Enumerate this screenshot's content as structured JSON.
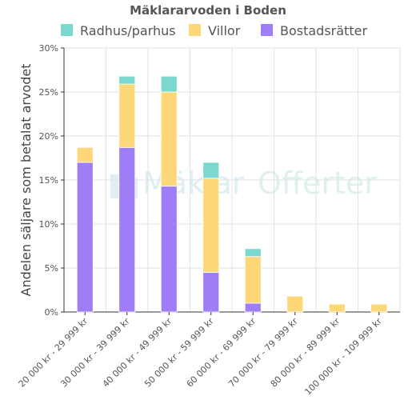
{
  "chart_data": {
    "type": "bar",
    "stacked": true,
    "title": "Mäklararvoden i Boden",
    "ylabel": "Andelen säljare som betalat arvodet",
    "xlabel": "",
    "ylim": [
      0,
      30
    ],
    "yticks": [
      "0%",
      "5%",
      "10%",
      "15%",
      "20%",
      "25%",
      "30%"
    ],
    "grid": true,
    "legend_position": "top",
    "categories": [
      "20 000 kr - 29 999 kr",
      "30 000 kr - 39 999 kr",
      "40 000 kr - 49 999 kr",
      "50 000 kr - 59 999 kr",
      "60 000 kr - 69 999 kr",
      "70 000 kr - 79 999 kr",
      "80 000 kr - 89 999 kr",
      "100 000 kr - 109 999 kr"
    ],
    "series": [
      {
        "name": "Bostadsrätter",
        "color": "#9f7df7",
        "values": [
          17,
          18.7,
          14.3,
          4.5,
          1,
          0,
          0,
          0
        ]
      },
      {
        "name": "Villor",
        "color": "#fdd778",
        "values": [
          1.7,
          7.2,
          10.7,
          10.7,
          5.3,
          1.8,
          0.9,
          0.9
        ]
      },
      {
        "name": "Radhus/parhus",
        "color": "#7ad8cf",
        "values": [
          0,
          0.9,
          1.8,
          1.8,
          0.9,
          0,
          0,
          0
        ]
      }
    ],
    "legend_order": [
      "Radhus/parhus",
      "Villor",
      "Bostadsrätter"
    ]
  },
  "watermark": {
    "part1": "Mäklar",
    "part2": "Offerter",
    "icon": "building-icon"
  }
}
